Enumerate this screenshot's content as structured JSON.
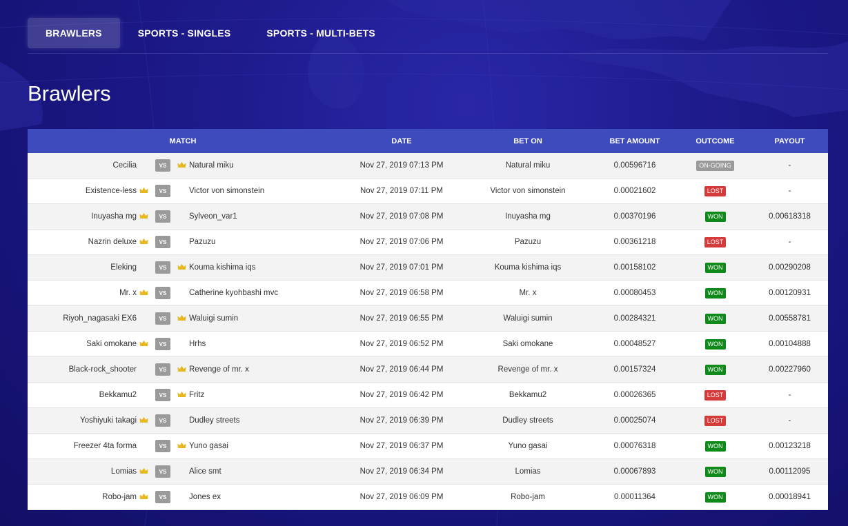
{
  "tabs": [
    {
      "label": "BRAWLERS",
      "active": true
    },
    {
      "label": "SPORTS - SINGLES",
      "active": false
    },
    {
      "label": "SPORTS - MULTI-BETS",
      "active": false
    }
  ],
  "page_title": "Brawlers",
  "table": {
    "headers": {
      "match": "MATCH",
      "date": "DATE",
      "bet_on": "BET ON",
      "bet_amount": "BET AMOUNT",
      "outcome": "OUTCOME",
      "payout": "PAYOUT"
    },
    "vs_label": "VS",
    "rows": [
      {
        "p1": "Cecilia",
        "p1_crown": false,
        "p2": "Natural miku",
        "p2_crown": true,
        "date": "Nov 27, 2019 07:13 PM",
        "bet_on": "Natural miku",
        "amount": "0.00596716",
        "outcome": "ON-GOING",
        "outcome_type": "ongoing",
        "payout": "-"
      },
      {
        "p1": "Existence-less",
        "p1_crown": true,
        "p2": "Victor von simonstein",
        "p2_crown": false,
        "date": "Nov 27, 2019 07:11 PM",
        "bet_on": "Victor von simonstein",
        "amount": "0.00021602",
        "outcome": "LOST",
        "outcome_type": "lost",
        "payout": "-"
      },
      {
        "p1": "Inuyasha mg",
        "p1_crown": true,
        "p2": "Sylveon_var1",
        "p2_crown": false,
        "date": "Nov 27, 2019 07:08 PM",
        "bet_on": "Inuyasha mg",
        "amount": "0.00370196",
        "outcome": "WON",
        "outcome_type": "won",
        "payout": "0.00618318"
      },
      {
        "p1": "Nazrin deluxe",
        "p1_crown": true,
        "p2": "Pazuzu",
        "p2_crown": false,
        "date": "Nov 27, 2019 07:06 PM",
        "bet_on": "Pazuzu",
        "amount": "0.00361218",
        "outcome": "LOST",
        "outcome_type": "lost",
        "payout": "-"
      },
      {
        "p1": "Eleking",
        "p1_crown": false,
        "p2": "Kouma kishima iqs",
        "p2_crown": true,
        "date": "Nov 27, 2019 07:01 PM",
        "bet_on": "Kouma kishima iqs",
        "amount": "0.00158102",
        "outcome": "WON",
        "outcome_type": "won",
        "payout": "0.00290208"
      },
      {
        "p1": "Mr. x",
        "p1_crown": true,
        "p2": "Catherine kyohbashi mvc",
        "p2_crown": false,
        "date": "Nov 27, 2019 06:58 PM",
        "bet_on": "Mr. x",
        "amount": "0.00080453",
        "outcome": "WON",
        "outcome_type": "won",
        "payout": "0.00120931"
      },
      {
        "p1": "Riyoh_nagasaki EX6",
        "p1_crown": false,
        "p2": "Waluigi sumin",
        "p2_crown": true,
        "date": "Nov 27, 2019 06:55 PM",
        "bet_on": "Waluigi sumin",
        "amount": "0.00284321",
        "outcome": "WON",
        "outcome_type": "won",
        "payout": "0.00558781"
      },
      {
        "p1": "Saki omokane",
        "p1_crown": true,
        "p2": "Hrhs",
        "p2_crown": false,
        "date": "Nov 27, 2019 06:52 PM",
        "bet_on": "Saki omokane",
        "amount": "0.00048527",
        "outcome": "WON",
        "outcome_type": "won",
        "payout": "0.00104888"
      },
      {
        "p1": "Black-rock_shooter",
        "p1_crown": false,
        "p2": "Revenge of mr. x",
        "p2_crown": true,
        "date": "Nov 27, 2019 06:44 PM",
        "bet_on": "Revenge of mr. x",
        "amount": "0.00157324",
        "outcome": "WON",
        "outcome_type": "won",
        "payout": "0.00227960"
      },
      {
        "p1": "Bekkamu2",
        "p1_crown": false,
        "p2": "Fritz",
        "p2_crown": true,
        "date": "Nov 27, 2019 06:42 PM",
        "bet_on": "Bekkamu2",
        "amount": "0.00026365",
        "outcome": "LOST",
        "outcome_type": "lost",
        "payout": "-"
      },
      {
        "p1": "Yoshiyuki takagi",
        "p1_crown": true,
        "p2": "Dudley streets",
        "p2_crown": false,
        "date": "Nov 27, 2019 06:39 PM",
        "bet_on": "Dudley streets",
        "amount": "0.00025074",
        "outcome": "LOST",
        "outcome_type": "lost",
        "payout": "-"
      },
      {
        "p1": "Freezer 4ta forma",
        "p1_crown": false,
        "p2": "Yuno gasai",
        "p2_crown": true,
        "date": "Nov 27, 2019 06:37 PM",
        "bet_on": "Yuno gasai",
        "amount": "0.00076318",
        "outcome": "WON",
        "outcome_type": "won",
        "payout": "0.00123218"
      },
      {
        "p1": "Lomias",
        "p1_crown": true,
        "p2": "Alice smt",
        "p2_crown": false,
        "date": "Nov 27, 2019 06:34 PM",
        "bet_on": "Lomias",
        "amount": "0.00067893",
        "outcome": "WON",
        "outcome_type": "won",
        "payout": "0.00112095"
      },
      {
        "p1": "Robo-jam",
        "p1_crown": true,
        "p2": "Jones ex",
        "p2_crown": false,
        "date": "Nov 27, 2019 06:09 PM",
        "bet_on": "Robo-jam",
        "amount": "0.00011364",
        "outcome": "WON",
        "outcome_type": "won",
        "payout": "0.00018941"
      }
    ]
  },
  "colors": {
    "header_bg": "#3d4bbd",
    "won": "#0f8a1a",
    "lost": "#d43b3b",
    "ongoing": "#9a9a9a",
    "crown": "#e8b823"
  },
  "icons": {
    "crown": "crown-icon"
  }
}
